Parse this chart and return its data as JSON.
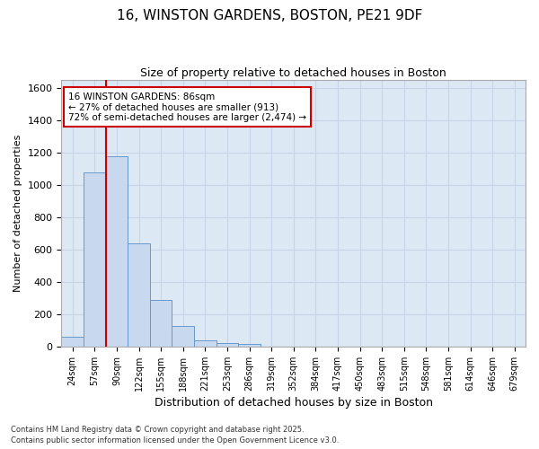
{
  "title_line1": "16, WINSTON GARDENS, BOSTON, PE21 9DF",
  "title_line2": "Size of property relative to detached houses in Boston",
  "xlabel": "Distribution of detached houses by size in Boston",
  "ylabel": "Number of detached properties",
  "bar_labels": [
    "24sqm",
    "57sqm",
    "90sqm",
    "122sqm",
    "155sqm",
    "188sqm",
    "221sqm",
    "253sqm",
    "286sqm",
    "319sqm",
    "352sqm",
    "384sqm",
    "417sqm",
    "450sqm",
    "483sqm",
    "515sqm",
    "548sqm",
    "581sqm",
    "614sqm",
    "646sqm",
    "679sqm"
  ],
  "bar_values": [
    60,
    1080,
    1180,
    640,
    290,
    125,
    40,
    20,
    15,
    0,
    0,
    0,
    0,
    0,
    0,
    0,
    0,
    0,
    0,
    0,
    0
  ],
  "bar_color": "#c8d8ef",
  "bar_edge_color": "#6699cc",
  "grid_color": "#c8d4e8",
  "background_color": "#dde8f5",
  "vline_color": "#cc0000",
  "annotation_text": "16 WINSTON GARDENS: 86sqm\n← 27% of detached houses are smaller (913)\n72% of semi-detached houses are larger (2,474) →",
  "annotation_box_edgecolor": "#cc0000",
  "annotation_box_facecolor": "#ffffff",
  "ylim": [
    0,
    1650
  ],
  "yticks": [
    0,
    200,
    400,
    600,
    800,
    1000,
    1200,
    1400,
    1600
  ],
  "footer_line1": "Contains HM Land Registry data © Crown copyright and database right 2025.",
  "footer_line2": "Contains public sector information licensed under the Open Government Licence v3.0."
}
